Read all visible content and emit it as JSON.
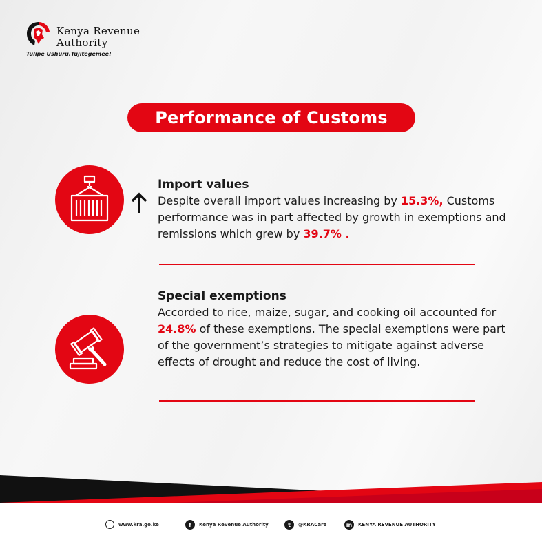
{
  "brand": {
    "name_line1": "Kenya Revenue",
    "name_line2": "Authority",
    "tagline": "Tulipe Ushuru,Tujitegemee!"
  },
  "title": "Performance of Customs",
  "sections": [
    {
      "icon": "shipping-container-icon",
      "trend_icon": "arrow-up-icon",
      "heading": "Import values",
      "text_1": "Despite overall import values increasing by ",
      "value_1": "15.3%,",
      "text_2": " Customs performance was in part affected by growth in exemptions and remissions which grew by ",
      "value_2": "39.7% ."
    },
    {
      "icon": "gavel-icon",
      "heading": "Special exemptions",
      "text_1": "Accorded to rice, maize, sugar, and cooking oil accounted for ",
      "value_1": "24.8%",
      "text_2": " of these exemptions. The special exemptions were part of the government’s strategies to mitigate against adverse effects of drought and reduce the cost of living."
    }
  ],
  "footer": {
    "website": "www.kra.go.ke",
    "facebook": "Kenya Revenue Authority",
    "twitter": "@KRACare",
    "linkedin": "KENYA REVENUE AUTHORITY"
  },
  "colors": {
    "accent": "#e30613",
    "dark": "#111111"
  }
}
